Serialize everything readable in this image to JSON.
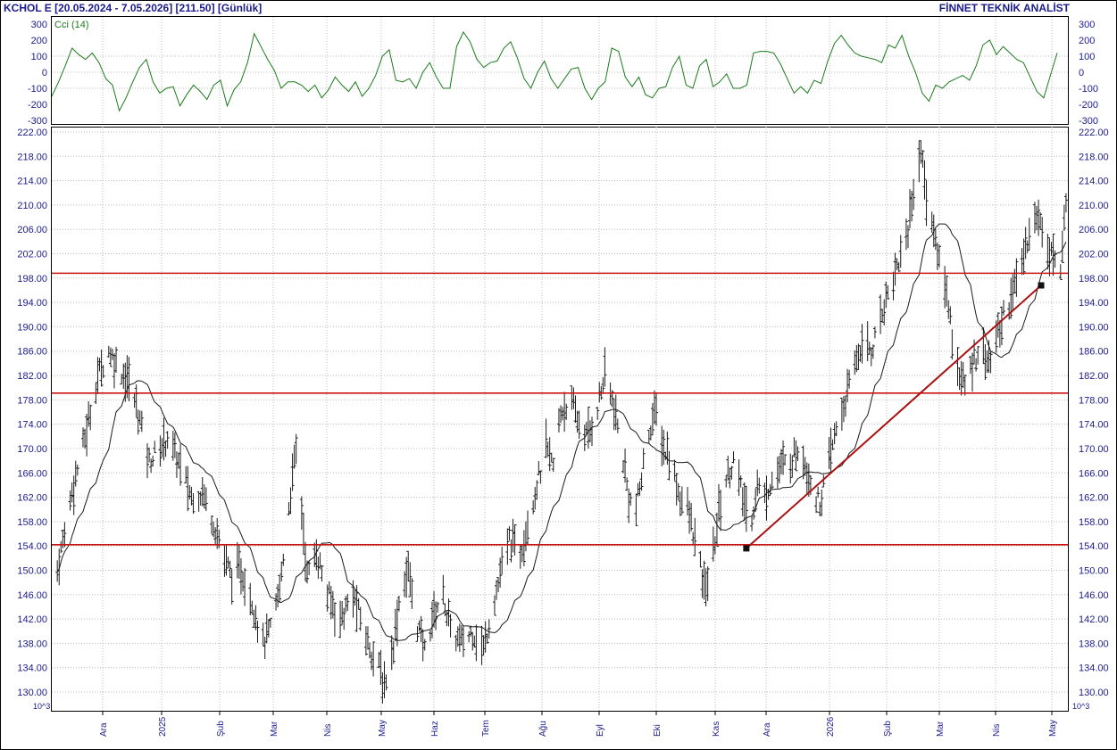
{
  "header": {
    "symbol_info": "KCHOL E  [20.05.2024 - 7.05.2026]  [211.50]  [Günlük]",
    "brand": "FİNNET TEKNİK ANALİST"
  },
  "indicator": {
    "label": "Cci (14)",
    "ticks": [
      "300",
      "200",
      "100",
      "0",
      "-100",
      "-200",
      "-300"
    ],
    "tick_values": [
      300,
      200,
      100,
      0,
      -100,
      -200,
      -300
    ],
    "color": "#1a7a1a"
  },
  "price_axis": {
    "ticks": [
      "222.00",
      "218.00",
      "214.00",
      "210.00",
      "206.00",
      "202.00",
      "198.00",
      "194.00",
      "190.00",
      "186.00",
      "182.00",
      "178.00",
      "174.00",
      "170.00",
      "166.00",
      "162.00",
      "158.00",
      "154.00",
      "150.00",
      "146.00",
      "142.00",
      "138.00",
      "134.00",
      "130.00"
    ],
    "tick_values": [
      222,
      218,
      214,
      210,
      206,
      202,
      198,
      194,
      190,
      186,
      182,
      178,
      174,
      170,
      166,
      162,
      158,
      154,
      150,
      146,
      142,
      138,
      134,
      130
    ],
    "scale_note": "10^3"
  },
  "months": [
    "Ara",
    "2025",
    "Şub",
    "Mar",
    "Nis",
    "May",
    "Haz",
    "Tem",
    "Ağu",
    "Eyl",
    "Eki",
    "Kas",
    "Ara",
    "2026",
    "Şub",
    "Mar",
    "Nis",
    "May"
  ],
  "colors": {
    "candle": "#1a1a1a",
    "moving_average": "#1a1a1a",
    "support_lines": "#cc1111",
    "trendline": "#aa1111",
    "grid": "#bbbbbb",
    "cci_line": "#1a7a1a",
    "axis_text": "#1a1a8c"
  },
  "chart_data": [
    {
      "type": "candlestick",
      "title": "KCHOL E",
      "ylim": [
        128,
        222
      ],
      "yticks": [
        222,
        218,
        214,
        210,
        206,
        202,
        198,
        194,
        190,
        186,
        182,
        178,
        174,
        170,
        166,
        162,
        158,
        154,
        150,
        146,
        142,
        138,
        134,
        130
      ],
      "x_tick_labels": [
        "Ara",
        "2025",
        "Şub",
        "Mar",
        "Nis",
        "May",
        "Haz",
        "Tem",
        "Ağu",
        "Eyl",
        "Eki",
        "Kas",
        "Ara",
        "2026",
        "Şub",
        "Mar",
        "Nis",
        "May"
      ],
      "price_anchor_points": [
        [
          "2024-11-04",
          150
        ],
        [
          "2024-11-12",
          163
        ],
        [
          "2024-11-20",
          173
        ],
        [
          "2024-11-26",
          182
        ],
        [
          "2024-12-02",
          186
        ],
        [
          "2024-12-06",
          184
        ],
        [
          "2024-12-13",
          181
        ],
        [
          "2024-12-18",
          176
        ],
        [
          "2024-12-24",
          168
        ],
        [
          "2024-12-30",
          170
        ],
        [
          "2025-01-03",
          172
        ],
        [
          "2025-01-10",
          167
        ],
        [
          "2025-01-16",
          162
        ],
        [
          "2025-01-22",
          163
        ],
        [
          "2025-01-28",
          158
        ],
        [
          "2025-02-03",
          152
        ],
        [
          "2025-02-07",
          149
        ],
        [
          "2025-02-12",
          150
        ],
        [
          "2025-02-18",
          145
        ],
        [
          "2025-02-24",
          138
        ],
        [
          "2025-02-28",
          140
        ],
        [
          "2025-03-05",
          147
        ],
        [
          "2025-03-09",
          158
        ],
        [
          "2025-03-14",
          170
        ],
        [
          "2025-03-17",
          160
        ],
        [
          "2025-03-20",
          149
        ],
        [
          "2025-03-25",
          153
        ],
        [
          "2025-03-31",
          146
        ],
        [
          "2025-04-07",
          142
        ],
        [
          "2025-04-14",
          146
        ],
        [
          "2025-04-21",
          139
        ],
        [
          "2025-04-28",
          134
        ],
        [
          "2025-05-01",
          131
        ],
        [
          "2025-05-06",
          138
        ],
        [
          "2025-05-10",
          147
        ],
        [
          "2025-05-14",
          150
        ],
        [
          "2025-05-18",
          142
        ],
        [
          "2025-05-23",
          137
        ],
        [
          "2025-05-28",
          143
        ],
        [
          "2025-06-02",
          146
        ],
        [
          "2025-06-06",
          140
        ],
        [
          "2025-06-12",
          138
        ],
        [
          "2025-06-18",
          140
        ],
        [
          "2025-06-24",
          137
        ],
        [
          "2025-06-28",
          143
        ],
        [
          "2025-07-03",
          149
        ],
        [
          "2025-07-08",
          155
        ],
        [
          "2025-07-14",
          153
        ],
        [
          "2025-07-18",
          158
        ],
        [
          "2025-07-23",
          164
        ],
        [
          "2025-07-28",
          170
        ],
        [
          "2025-08-01",
          167
        ],
        [
          "2025-08-05",
          176
        ],
        [
          "2025-08-10",
          178
        ],
        [
          "2025-08-15",
          174
        ],
        [
          "2025-08-20",
          172
        ],
        [
          "2025-08-25",
          177
        ],
        [
          "2025-08-29",
          182
        ],
        [
          "2025-09-02",
          178
        ],
        [
          "2025-09-07",
          170
        ],
        [
          "2025-09-11",
          162
        ],
        [
          "2025-09-15",
          160
        ],
        [
          "2025-09-18",
          165
        ],
        [
          "2025-09-22",
          173
        ],
        [
          "2025-09-26",
          176
        ],
        [
          "2025-09-30",
          170
        ],
        [
          "2025-10-04",
          168
        ],
        [
          "2025-10-08",
          163
        ],
        [
          "2025-10-14",
          159
        ],
        [
          "2025-10-19",
          152
        ],
        [
          "2025-10-22",
          147
        ],
        [
          "2025-10-26",
          150
        ],
        [
          "2025-10-30",
          160
        ],
        [
          "2025-11-03",
          165
        ],
        [
          "2025-11-07",
          168
        ],
        [
          "2025-11-12",
          162
        ],
        [
          "2025-11-16",
          157
        ],
        [
          "2025-11-20",
          164
        ],
        [
          "2025-11-24",
          162
        ],
        [
          "2025-11-28",
          165
        ],
        [
          "2025-12-03",
          167
        ],
        [
          "2025-12-08",
          168
        ],
        [
          "2025-12-12",
          170
        ],
        [
          "2025-12-16",
          168
        ],
        [
          "2025-12-20",
          163
        ],
        [
          "2025-12-24",
          161
        ],
        [
          "2025-12-28",
          166
        ],
        [
          "2026-01-01",
          172
        ],
        [
          "2026-01-05",
          176
        ],
        [
          "2026-01-09",
          180
        ],
        [
          "2026-01-13",
          185
        ],
        [
          "2026-01-17",
          188
        ],
        [
          "2026-01-21",
          186
        ],
        [
          "2026-01-25",
          190
        ],
        [
          "2026-01-29",
          195
        ],
        [
          "2026-02-02",
          198
        ],
        [
          "2026-02-06",
          202
        ],
        [
          "2026-02-10",
          206
        ],
        [
          "2026-02-14",
          215
        ],
        [
          "2026-02-17",
          219
        ],
        [
          "2026-02-20",
          212
        ],
        [
          "2026-02-24",
          205
        ],
        [
          "2026-02-28",
          200
        ],
        [
          "2026-03-04",
          194
        ],
        [
          "2026-03-07",
          186
        ],
        [
          "2026-03-10",
          182
        ],
        [
          "2026-03-14",
          180
        ],
        [
          "2026-03-18",
          185
        ],
        [
          "2026-03-22",
          187
        ],
        [
          "2026-03-26",
          184
        ],
        [
          "2026-03-30",
          188
        ],
        [
          "2026-04-03",
          192
        ],
        [
          "2026-04-07",
          195
        ],
        [
          "2026-04-11",
          198
        ],
        [
          "2026-04-15",
          203
        ],
        [
          "2026-04-19",
          209
        ],
        [
          "2026-04-23",
          207
        ],
        [
          "2026-04-27",
          204
        ],
        [
          "2026-05-01",
          201
        ],
        [
          "2026-05-04",
          198
        ],
        [
          "2026-05-07",
          211.5
        ]
      ],
      "horizontal_lines": [
        198.8,
        179.1,
        154.2
      ],
      "trendline": {
        "from": [
          "2025-11-14",
          153.6
        ],
        "to": [
          "2026-05-07",
          196.8
        ]
      },
      "series": [
        {
          "values_from": "price_anchor_points"
        },
        {
          "name": "",
          "style": "moving average"
        }
      ]
    },
    {
      "type": "line",
      "title": "Cci (14)",
      "ylim": [
        -300,
        300
      ],
      "yticks": [
        300,
        200,
        100,
        0,
        -100,
        -200,
        -300
      ],
      "values": [
        -150,
        -60,
        40,
        150,
        110,
        80,
        120,
        60,
        -40,
        -80,
        -240,
        -160,
        -60,
        30,
        80,
        -60,
        -130,
        -100,
        -90,
        -210,
        -140,
        -80,
        -120,
        -170,
        -80,
        -50,
        -210,
        -110,
        -60,
        60,
        240,
        160,
        80,
        10,
        -100,
        -60,
        -60,
        -80,
        -120,
        -80,
        -160,
        -110,
        -30,
        -80,
        -120,
        -60,
        -150,
        -100,
        -20,
        100,
        140,
        -50,
        -60,
        -40,
        -100,
        0,
        60,
        -30,
        -100,
        -100,
        160,
        250,
        190,
        80,
        30,
        60,
        70,
        150,
        190,
        90,
        -40,
        -100,
        0,
        70,
        -40,
        -100,
        -40,
        20,
        30,
        -100,
        -170,
        -100,
        -60,
        150,
        130,
        -30,
        -90,
        -30,
        -140,
        -160,
        -100,
        -90,
        30,
        100,
        -80,
        -100,
        40,
        80,
        -90,
        -60,
        -10,
        -100,
        -100,
        -80,
        120,
        130,
        130,
        120,
        50,
        -40,
        -130,
        -90,
        -130,
        -50,
        -70,
        70,
        180,
        230,
        170,
        120,
        100,
        90,
        80,
        60,
        170,
        150,
        230,
        100,
        0,
        -130,
        -180,
        -80,
        -100,
        -60,
        -40,
        -20,
        -50,
        40,
        170,
        200,
        110,
        160,
        120,
        80,
        60,
        -30,
        -120,
        -160,
        -20,
        120
      ]
    }
  ]
}
